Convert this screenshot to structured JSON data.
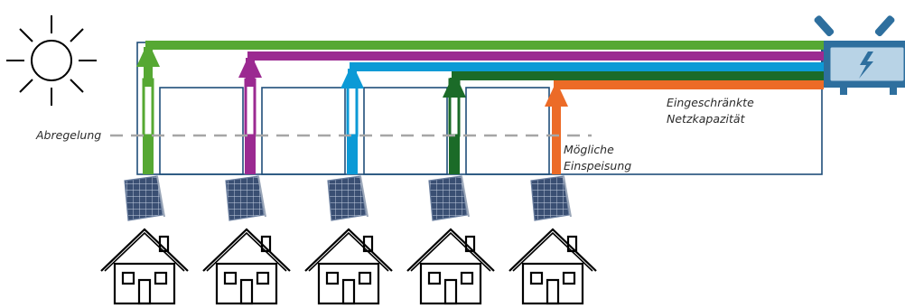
{
  "labels": {
    "curtailment": "Abregelung",
    "possible_feed_in": [
      "Mögliche",
      "Einspeisung"
    ],
    "limited_capacity": [
      "Eingeschränkte",
      "Netzkapazität"
    ]
  },
  "colors": {
    "outline": "#1f4e79",
    "threshold_line": "#a6a6a6",
    "transformer": "#2e6f9e",
    "house": "#000000",
    "sun": "#000000"
  },
  "icons": [
    "sun-icon",
    "transformer-icon",
    "lightning-icon",
    "solar-panel-icon",
    "house-icon"
  ],
  "flows": [
    {
      "name": "household-1",
      "color": "#56a833",
      "possible_feed_in": "high",
      "curtailed": true
    },
    {
      "name": "household-2",
      "color": "#9b2a91",
      "possible_feed_in": "high",
      "curtailed": true
    },
    {
      "name": "household-3",
      "color": "#0c9ad6",
      "possible_feed_in": "high",
      "curtailed": true
    },
    {
      "name": "household-4",
      "color": "#1b6b28",
      "possible_feed_in": "high",
      "curtailed": true
    },
    {
      "name": "household-5",
      "color": "#ec6b27",
      "possible_feed_in": "reduced",
      "curtailed": false
    }
  ]
}
